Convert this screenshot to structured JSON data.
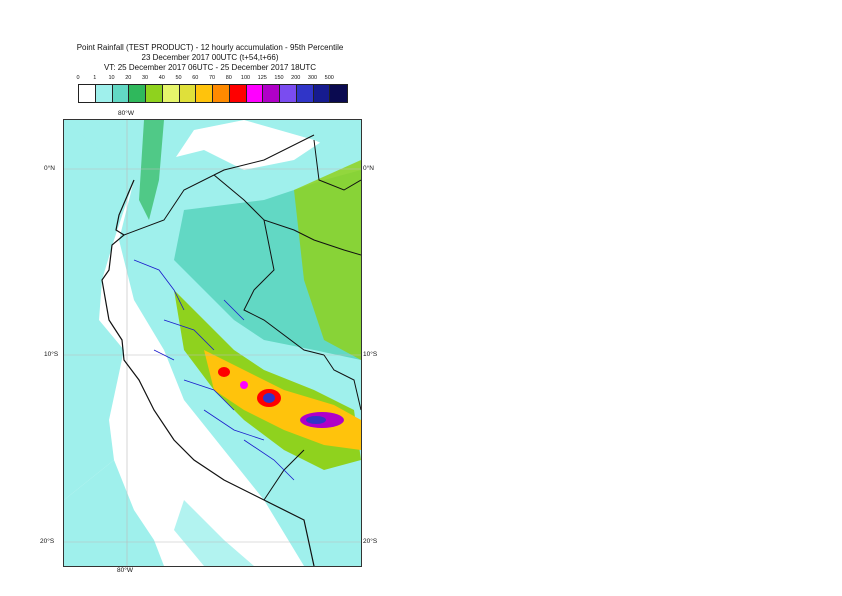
{
  "title": {
    "line1": "Point Rainfall (TEST PRODUCT) - 12 hourly accumulation - 95th Percentile",
    "line2": "23 December 2017 00UTC (t+54,t+66)",
    "line3": "VT: 25 December 2017 06UTC - 25 December 2017 18UTC"
  },
  "colorbar": {
    "ticks": [
      "0",
      "1",
      "10",
      "20",
      "30",
      "40",
      "50",
      "60",
      "70",
      "80",
      "100",
      "125",
      "150",
      "200",
      "300",
      "500"
    ],
    "colors": [
      "#ffffff",
      "#9ff0ec",
      "#62d8c4",
      "#2fb85c",
      "#8fd21e",
      "#e6f56b",
      "#dfe03a",
      "#ffc30c",
      "#ff8a00",
      "#ff0000",
      "#ff00ff",
      "#b000c8",
      "#7a4cf0",
      "#3035c8",
      "#161b8f",
      "#0a0a50"
    ]
  },
  "map": {
    "lon_labels": {
      "top": "80°W",
      "bottom": "80°W"
    },
    "lat_labels": [
      "0°N",
      "10°S",
      "20°S"
    ]
  }
}
